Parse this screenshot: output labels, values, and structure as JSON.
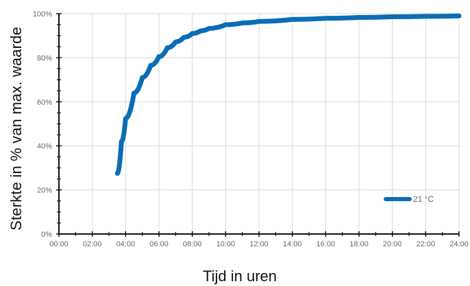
{
  "chart_data": {
    "type": "line",
    "title": "",
    "xlabel": "Tijd in uren",
    "ylabel": "Sterkte in % van max. waarde",
    "x_ticks": [
      "00:00",
      "02:00",
      "04:00",
      "06:00",
      "08:00",
      "10:00",
      "12:00",
      "14:00",
      "16:00",
      "18:00",
      "20:00",
      "22:00",
      "24:00"
    ],
    "y_ticks": [
      "0%",
      "20%",
      "40%",
      "60%",
      "80%",
      "100%"
    ],
    "xlim": [
      "00:00",
      "24:00"
    ],
    "ylim": [
      0,
      100
    ],
    "grid": true,
    "legend_position": "bottom-right",
    "series": [
      {
        "name": "21 °C",
        "color": "#0a6db5",
        "x": [
          "03:30",
          "03:45",
          "04:00",
          "04:30",
          "05:00",
          "05:30",
          "06:00",
          "06:30",
          "07:00",
          "07:30",
          "08:00",
          "08:30",
          "09:00",
          "10:00",
          "11:00",
          "12:00",
          "14:00",
          "16:00",
          "18:00",
          "20:00",
          "22:00",
          "24:00"
        ],
        "y": [
          27.5,
          42.0,
          52.5,
          64.0,
          71.0,
          76.5,
          80.5,
          84.5,
          87.2,
          89.3,
          91.0,
          92.2,
          93.3,
          95.0,
          95.8,
          96.5,
          97.4,
          97.9,
          98.3,
          98.6,
          98.8,
          99.0
        ]
      }
    ]
  }
}
